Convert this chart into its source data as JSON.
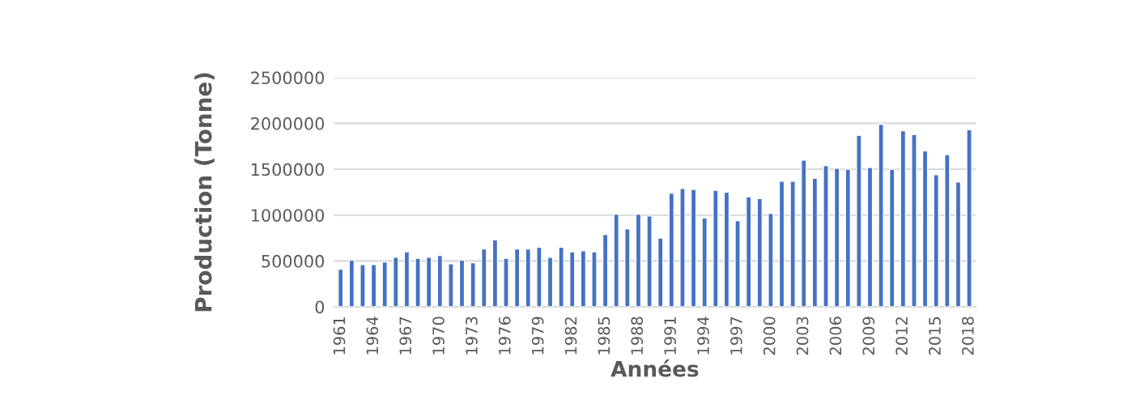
{
  "chart_data": {
    "type": "bar",
    "xlabel": "Années",
    "ylabel": "Production (Tonne)",
    "categories": [
      "1961",
      null,
      null,
      "1964",
      null,
      null,
      "1967",
      null,
      null,
      "1970",
      null,
      null,
      "1973",
      null,
      null,
      "1976",
      null,
      null,
      "1979",
      null,
      null,
      "1982",
      null,
      null,
      "1985",
      null,
      null,
      "1988",
      null,
      null,
      "1991",
      null,
      null,
      "1994",
      null,
      null,
      "1997",
      null,
      null,
      "2000",
      null,
      null,
      "2003",
      null,
      null,
      "2006",
      null,
      null,
      "2009",
      null,
      null,
      "2012",
      null,
      null,
      "2015",
      null,
      null,
      "2018"
    ],
    "values": [
      410000,
      510000,
      460000,
      460000,
      490000,
      540000,
      600000,
      530000,
      540000,
      560000,
      470000,
      510000,
      480000,
      630000,
      730000,
      530000,
      630000,
      630000,
      650000,
      540000,
      650000,
      600000,
      610000,
      600000,
      790000,
      1010000,
      850000,
      1010000,
      990000,
      750000,
      1240000,
      1290000,
      1280000,
      970000,
      1270000,
      1250000,
      940000,
      1200000,
      1180000,
      1020000,
      1370000,
      1370000,
      1600000,
      1400000,
      1540000,
      1510000,
      1500000,
      1870000,
      1520000,
      1990000,
      1500000,
      1920000,
      1880000,
      1700000,
      1440000,
      1660000,
      1360000,
      1930000
    ],
    "color": "#4472c4",
    "ylim": [
      0,
      2500000
    ],
    "yticks": [
      0,
      500000,
      1000000,
      1500000,
      2000000,
      2500000
    ],
    "grid": "y"
  }
}
